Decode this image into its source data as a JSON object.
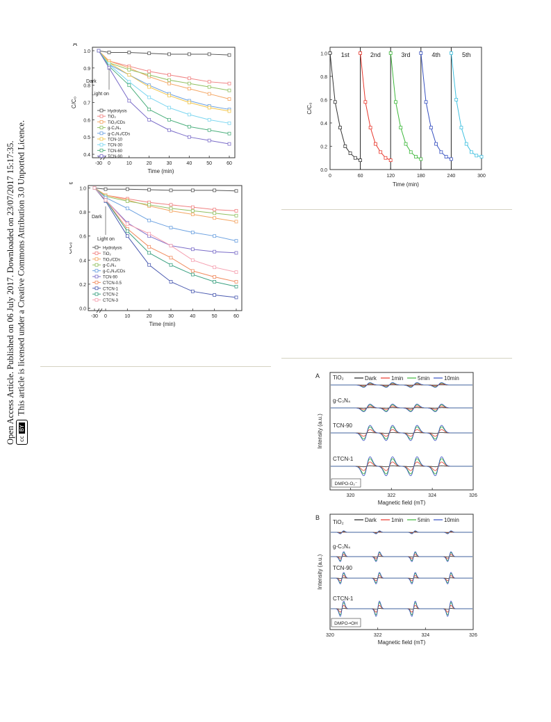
{
  "sidebar": {
    "line1": "Open Access Article. Published on 06 July 2017. Downloaded on 23/07/2017 15:17:35.",
    "line2": "This article is licensed under a Creative Commons Attribution 3.0 Unported Licence.",
    "badge_cc": "cc",
    "badge_by": "BY"
  },
  "chart_data": [
    {
      "id": "A",
      "type": "line",
      "panel_label": "A",
      "xlabel": "Time (min)",
      "ylabel": "C/C₀",
      "x": [
        -30,
        0,
        10,
        20,
        30,
        40,
        50,
        60
      ],
      "xticks": [
        "-30",
        "0",
        "10",
        "20",
        "30",
        "40",
        "50",
        "60"
      ],
      "ylim": [
        0.4,
        1.0
      ],
      "yticks": [
        "0.4",
        "0.5",
        "0.6",
        "0.7",
        "0.8",
        "0.9",
        "1.0"
      ],
      "annotations": [
        "Dark",
        "Light on"
      ],
      "legend_position": "left",
      "series": [
        {
          "name": "Hydrolysis",
          "color": "#555555",
          "values": [
            1.0,
            0.99,
            0.99,
            0.985,
            0.98,
            0.98,
            0.98,
            0.975
          ]
        },
        {
          "name": "TiO₂",
          "color": "#f08080",
          "values": [
            1.0,
            0.94,
            0.91,
            0.88,
            0.86,
            0.84,
            0.82,
            0.81
          ]
        },
        {
          "name": "TiO₂/CDs",
          "color": "#f4a460",
          "values": [
            1.0,
            0.94,
            0.9,
            0.85,
            0.81,
            0.78,
            0.75,
            0.72
          ]
        },
        {
          "name": "g-C₃N₄",
          "color": "#90c060",
          "values": [
            1.0,
            0.93,
            0.89,
            0.86,
            0.83,
            0.81,
            0.79,
            0.77
          ]
        },
        {
          "name": "g-C₃N₄/CDs",
          "color": "#6aa0e0",
          "values": [
            1.0,
            0.92,
            0.86,
            0.8,
            0.75,
            0.71,
            0.68,
            0.66
          ]
        },
        {
          "name": "TCN-10",
          "color": "#f2c64a",
          "values": [
            1.0,
            0.93,
            0.86,
            0.79,
            0.74,
            0.7,
            0.67,
            0.65
          ]
        },
        {
          "name": "TCN-30",
          "color": "#7bd6f0",
          "values": [
            1.0,
            0.92,
            0.82,
            0.73,
            0.67,
            0.63,
            0.6,
            0.58
          ]
        },
        {
          "name": "TCN-60",
          "color": "#4caf7d",
          "values": [
            1.0,
            0.91,
            0.8,
            0.66,
            0.6,
            0.56,
            0.54,
            0.52
          ]
        },
        {
          "name": "TCN-90",
          "color": "#7a6cc8",
          "values": [
            1.0,
            0.9,
            0.71,
            0.6,
            0.54,
            0.5,
            0.48,
            0.46
          ]
        }
      ]
    },
    {
      "id": "B",
      "type": "line",
      "panel_label": "B",
      "xlabel": "Time (min)",
      "ylabel": "C/C₀",
      "x": [
        -30,
        0,
        10,
        20,
        30,
        40,
        50,
        60
      ],
      "xticks": [
        "-30",
        "0",
        "10",
        "20",
        "30",
        "40",
        "50",
        "60"
      ],
      "ylim": [
        0.0,
        1.0
      ],
      "yticks": [
        "0.0",
        "0.2",
        "0.4",
        "0.6",
        "0.8",
        "1.0"
      ],
      "annotations": [
        "Dark",
        "Light on"
      ],
      "legend_position": "left",
      "series": [
        {
          "name": "Hydrolysis",
          "color": "#555555",
          "values": [
            1.0,
            0.99,
            0.99,
            0.985,
            0.98,
            0.98,
            0.98,
            0.975
          ]
        },
        {
          "name": "TiO₂",
          "color": "#f08080",
          "values": [
            1.0,
            0.94,
            0.91,
            0.88,
            0.86,
            0.84,
            0.82,
            0.81
          ]
        },
        {
          "name": "TiO₂/CDs",
          "color": "#f4a460",
          "values": [
            1.0,
            0.94,
            0.9,
            0.85,
            0.81,
            0.78,
            0.75,
            0.72
          ]
        },
        {
          "name": "g-C₃N₄",
          "color": "#90c060",
          "values": [
            1.0,
            0.93,
            0.89,
            0.86,
            0.83,
            0.81,
            0.79,
            0.77
          ]
        },
        {
          "name": "g-C₃N₄/CDs",
          "color": "#6aa0e0",
          "values": [
            1.0,
            0.92,
            0.83,
            0.73,
            0.67,
            0.63,
            0.6,
            0.56
          ]
        },
        {
          "name": "TCN-90",
          "color": "#7a6cc8",
          "values": [
            1.0,
            0.9,
            0.71,
            0.6,
            0.52,
            0.49,
            0.47,
            0.46
          ]
        },
        {
          "name": "CTCN-0.5",
          "color": "#f08a5d",
          "values": [
            1.0,
            0.9,
            0.66,
            0.51,
            0.42,
            0.31,
            0.26,
            0.22
          ]
        },
        {
          "name": "CTCN-1",
          "color": "#4a5ab0",
          "values": [
            1.0,
            0.89,
            0.6,
            0.36,
            0.22,
            0.14,
            0.11,
            0.09
          ]
        },
        {
          "name": "CTCN-2",
          "color": "#3aa080",
          "values": [
            1.0,
            0.9,
            0.64,
            0.46,
            0.36,
            0.28,
            0.22,
            0.18
          ]
        },
        {
          "name": "CTCN-3",
          "color": "#f5a0b0",
          "values": [
            1.0,
            0.9,
            0.7,
            0.62,
            0.52,
            0.4,
            0.34,
            0.3
          ]
        }
      ]
    },
    {
      "id": "cycle",
      "type": "line",
      "xlabel": "Time (min)",
      "ylabel": "C/C₀",
      "xlim": [
        0,
        300
      ],
      "xticks": [
        "0",
        "60",
        "120",
        "180",
        "240",
        "300"
      ],
      "ylim": [
        0.0,
        1.0
      ],
      "yticks": [
        "0.0",
        "0.2",
        "0.4",
        "0.6",
        "0.8",
        "1.0"
      ],
      "cycle_labels": [
        "1st",
        "2nd",
        "3rd",
        "4th",
        "5th"
      ],
      "series": [
        {
          "name": "1st",
          "color": "#333333",
          "x": [
            0,
            10,
            20,
            30,
            40,
            50,
            60
          ],
          "values": [
            1.0,
            0.58,
            0.36,
            0.2,
            0.14,
            0.1,
            0.08
          ]
        },
        {
          "name": "2nd",
          "color": "#e8372c",
          "x": [
            60,
            70,
            80,
            90,
            100,
            110,
            120
          ],
          "values": [
            1.0,
            0.58,
            0.36,
            0.22,
            0.15,
            0.1,
            0.08
          ]
        },
        {
          "name": "3rd",
          "color": "#3db83a",
          "x": [
            120,
            130,
            140,
            150,
            160,
            170,
            180
          ],
          "values": [
            1.0,
            0.58,
            0.36,
            0.22,
            0.15,
            0.11,
            0.09
          ]
        },
        {
          "name": "4th",
          "color": "#3650c0",
          "x": [
            180,
            190,
            200,
            210,
            220,
            230,
            240
          ],
          "values": [
            1.0,
            0.58,
            0.36,
            0.22,
            0.15,
            0.11,
            0.09
          ]
        },
        {
          "name": "5th",
          "color": "#3fc0e0",
          "x": [
            240,
            250,
            260,
            270,
            280,
            290,
            300
          ],
          "values": [
            1.0,
            0.6,
            0.36,
            0.22,
            0.15,
            0.12,
            0.11
          ]
        }
      ]
    },
    {
      "id": "epr_A",
      "type": "line",
      "panel_label": "A",
      "xlabel": "Magnetic field (mT)",
      "ylabel": "Intensity (a.u.)",
      "xlim": [
        319,
        326
      ],
      "xticks": [
        "320",
        "322",
        "324",
        "326"
      ],
      "legend": [
        "Dark",
        "1min",
        "5min",
        "10min"
      ],
      "samples": [
        "TiO₂",
        "g-C₃N₄",
        "TCN-90",
        "CTCN-1"
      ],
      "box_label": "DMPO-O₂⁻",
      "peak_positions": [
        320.8,
        321.9,
        323.1,
        324.3
      ],
      "relative_amplitudes": [
        0.25,
        0.4,
        0.8,
        1.0
      ],
      "series": [
        {
          "name": "Dark",
          "color": "#222222"
        },
        {
          "name": "1min",
          "color": "#e8372c"
        },
        {
          "name": "5min",
          "color": "#3db83a"
        },
        {
          "name": "10min",
          "color": "#3650c0"
        }
      ]
    },
    {
      "id": "epr_B",
      "type": "line",
      "panel_label": "B",
      "xlabel": "Magnetic field (mT)",
      "ylabel": "Intensity (a.u.)",
      "xlim": [
        320,
        326
      ],
      "xticks": [
        "320",
        "322",
        "324",
        "326"
      ],
      "legend": [
        "Dark",
        "1min",
        "5min",
        "10min"
      ],
      "samples": [
        "TiO₂",
        "g-C₃N₄",
        "TCN-90",
        "CTCN-1"
      ],
      "box_label": "DMPO-•OH",
      "peak_positions": [
        320.5,
        322.0,
        323.5,
        325.0
      ],
      "relative_amplitudes": [
        0.2,
        0.65,
        0.75,
        1.0
      ],
      "series": [
        {
          "name": "Dark",
          "color": "#222222"
        },
        {
          "name": "1min",
          "color": "#e8372c"
        },
        {
          "name": "5min",
          "color": "#3db83a"
        },
        {
          "name": "10min",
          "color": "#3650c0"
        }
      ]
    }
  ]
}
